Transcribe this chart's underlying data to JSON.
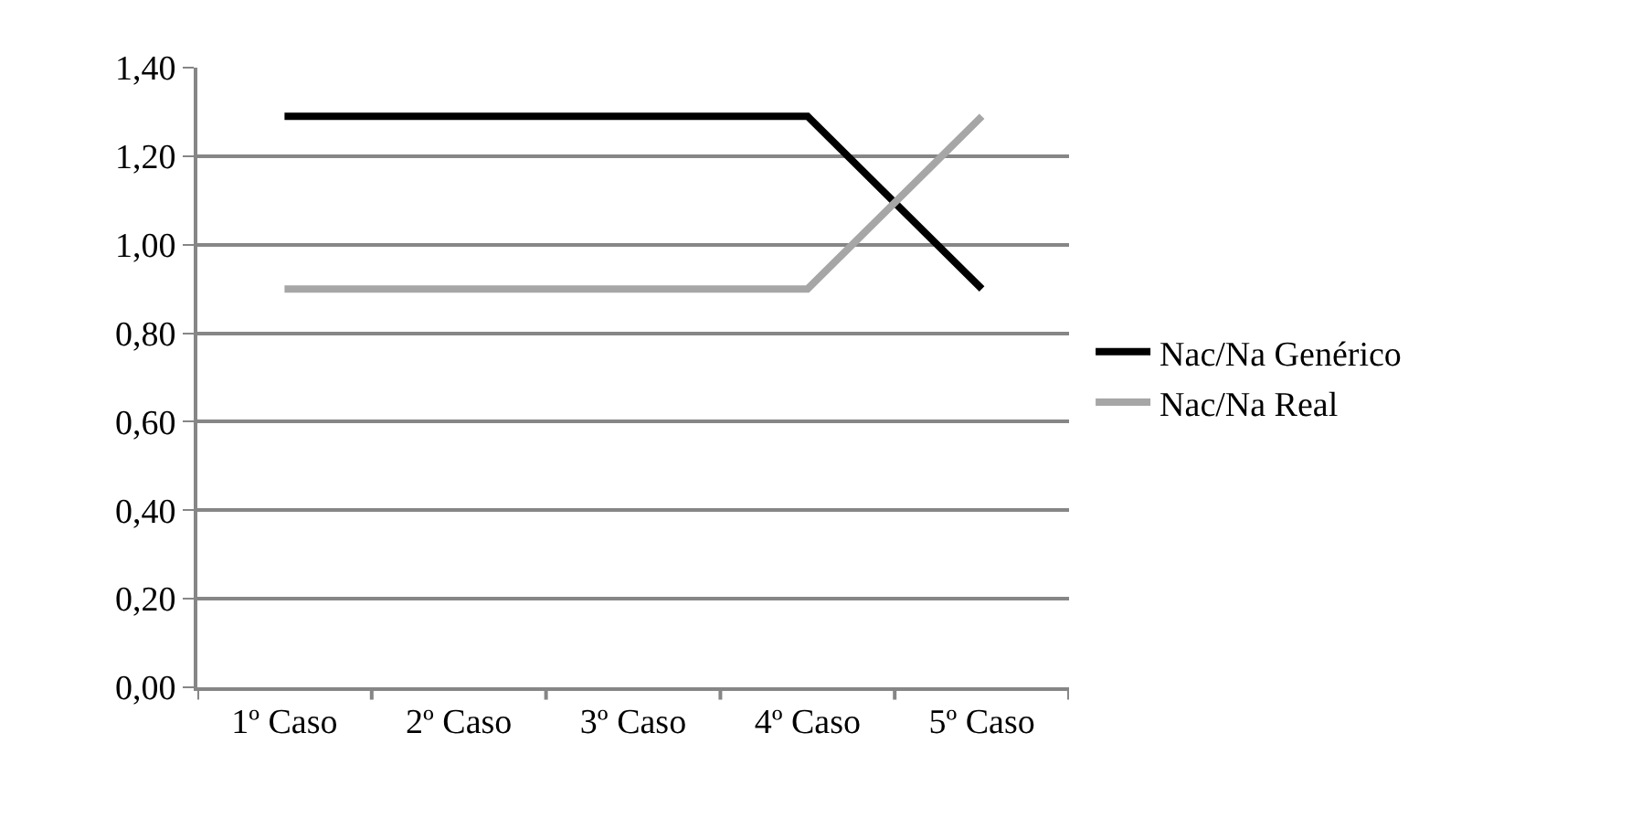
{
  "chart_data": {
    "type": "line",
    "categories": [
      "1º Caso",
      "2º Caso",
      "3º Caso",
      "4º Caso",
      "5º Caso"
    ],
    "series": [
      {
        "name": "Nac/Na Genérico",
        "color": "#000000",
        "values": [
          1.29,
          1.29,
          1.29,
          1.29,
          0.9
        ]
      },
      {
        "name": "Nac/Na Real",
        "color": "#a6a6a6",
        "values": [
          0.9,
          0.9,
          0.9,
          0.9,
          1.29
        ]
      }
    ],
    "ylim": [
      0,
      1.4
    ],
    "yticks": [
      {
        "value": 0,
        "label": "0,00"
      },
      {
        "value": 0.2,
        "label": "0,20"
      },
      {
        "value": 0.4,
        "label": "0,40"
      },
      {
        "value": 0.6,
        "label": "0,60"
      },
      {
        "value": 0.8,
        "label": "0,80"
      },
      {
        "value": 1.0,
        "label": "1,00"
      },
      {
        "value": 1.2,
        "label": "1,20"
      },
      {
        "value": 1.4,
        "label": "1,40"
      }
    ],
    "grid": "y",
    "legend": "right",
    "marker": "none",
    "line_style": "solid"
  }
}
